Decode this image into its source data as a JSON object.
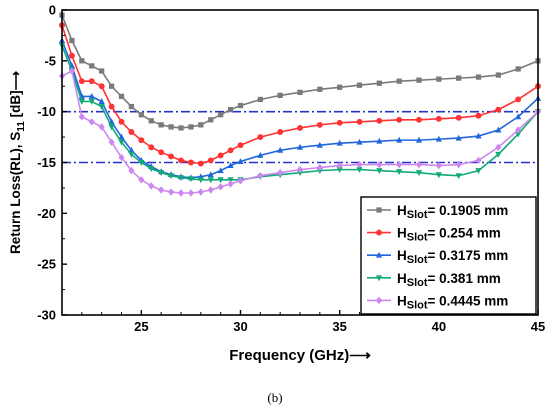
{
  "chart_data": {
    "type": "line",
    "xlabel": "Frequency (GHz)⟶",
    "ylabel_main": "Return Loss(RL), S",
    "ylabel_sub": "11",
    "ylabel_tail": " [dB]⟶",
    "xlim": [
      21,
      45
    ],
    "ylim": [
      -30,
      0
    ],
    "xticks": [
      25,
      30,
      35,
      40,
      45
    ],
    "yticks": [
      0,
      -5,
      -10,
      -15,
      -20,
      -25,
      -30
    ],
    "reference_lines": [
      {
        "y": -10,
        "style": "dash-dot",
        "color": "#2233cc"
      },
      {
        "y": -15,
        "style": "dash-dot",
        "color": "#2233cc"
      }
    ],
    "legend_placement": "bottom-right",
    "series": [
      {
        "name_main": "H",
        "name_sub": "Slot",
        "name_value": "= 0.1905 mm",
        "color": "#7a7a7a",
        "marker": "square",
        "x": [
          21,
          21.5,
          22,
          22.5,
          23,
          23.5,
          24,
          24.5,
          25,
          25.5,
          26,
          26.5,
          27,
          27.5,
          28,
          28.5,
          29,
          29.5,
          30,
          31,
          32,
          33,
          34,
          35,
          36,
          37,
          38,
          39,
          40,
          41,
          42,
          43,
          44,
          45
        ],
        "y": [
          -0.5,
          -3.0,
          -5.0,
          -5.5,
          -6.0,
          -7.5,
          -8.5,
          -9.5,
          -10.3,
          -10.9,
          -11.3,
          -11.5,
          -11.6,
          -11.5,
          -11.3,
          -10.8,
          -10.3,
          -9.8,
          -9.4,
          -8.8,
          -8.4,
          -8.1,
          -7.8,
          -7.6,
          -7.4,
          -7.2,
          -7.0,
          -6.9,
          -6.8,
          -6.7,
          -6.6,
          -6.4,
          -5.8,
          -5.0
        ]
      },
      {
        "name_main": "H",
        "name_sub": "Slot",
        "name_value": "= 0.254 mm",
        "color": "#ff3333",
        "marker": "circle",
        "x": [
          21,
          21.5,
          22,
          22.5,
          23,
          23.5,
          24,
          24.5,
          25,
          25.5,
          26,
          26.5,
          27,
          27.5,
          28,
          28.5,
          29,
          29.5,
          30,
          31,
          32,
          33,
          34,
          35,
          36,
          37,
          38,
          39,
          40,
          41,
          42,
          43,
          44,
          45
        ],
        "y": [
          -1.5,
          -4.5,
          -7.0,
          -7.0,
          -7.5,
          -9.5,
          -11.0,
          -12.0,
          -12.8,
          -13.5,
          -14.0,
          -14.4,
          -14.8,
          -15.0,
          -15.1,
          -14.8,
          -14.3,
          -13.8,
          -13.3,
          -12.5,
          -12.0,
          -11.6,
          -11.3,
          -11.1,
          -11.0,
          -10.9,
          -10.8,
          -10.8,
          -10.7,
          -10.6,
          -10.4,
          -9.8,
          -8.8,
          -7.5
        ]
      },
      {
        "name_main": "H",
        "name_sub": "Slot",
        "name_value": "= 0.3175 mm",
        "color": "#2266dd",
        "marker": "triangle",
        "x": [
          21,
          21.5,
          22,
          22.5,
          23,
          23.5,
          24,
          24.5,
          25,
          25.5,
          26,
          26.5,
          27,
          27.5,
          28,
          28.5,
          29,
          29.5,
          30,
          31,
          32,
          33,
          34,
          35,
          36,
          37,
          38,
          39,
          40,
          41,
          42,
          43,
          44,
          45
        ],
        "y": [
          -3.0,
          -5.5,
          -8.5,
          -8.5,
          -9.0,
          -11.0,
          -12.5,
          -13.8,
          -14.8,
          -15.4,
          -15.9,
          -16.2,
          -16.4,
          -16.5,
          -16.4,
          -16.2,
          -15.8,
          -15.3,
          -14.9,
          -14.3,
          -13.8,
          -13.5,
          -13.3,
          -13.1,
          -13.0,
          -12.9,
          -12.8,
          -12.8,
          -12.7,
          -12.6,
          -12.4,
          -11.8,
          -10.5,
          -8.7
        ]
      },
      {
        "name_main": "H",
        "name_sub": "Slot",
        "name_value": "= 0.381 mm",
        "color": "#11aa77",
        "marker": "down-triangle",
        "x": [
          21,
          21.5,
          22,
          22.5,
          23,
          23.5,
          24,
          24.5,
          25,
          25.5,
          26,
          26.5,
          27,
          27.5,
          28,
          28.5,
          29,
          29.5,
          30,
          31,
          32,
          33,
          34,
          35,
          36,
          37,
          38,
          39,
          40,
          41,
          42,
          43,
          44,
          45
        ],
        "y": [
          -3.5,
          -6.0,
          -9.0,
          -9.0,
          -9.5,
          -11.5,
          -13.0,
          -14.2,
          -15.0,
          -15.6,
          -16.0,
          -16.3,
          -16.5,
          -16.6,
          -16.7,
          -16.7,
          -16.7,
          -16.7,
          -16.7,
          -16.4,
          -16.2,
          -16.0,
          -15.8,
          -15.7,
          -15.7,
          -15.8,
          -15.9,
          -16.0,
          -16.2,
          -16.3,
          -15.8,
          -14.2,
          -12.2,
          -10.0
        ]
      },
      {
        "name_main": "H",
        "name_sub": "Slot",
        "name_value": "= 0.4445 mm",
        "color": "#cc88ee",
        "marker": "diamond",
        "x": [
          21,
          21.5,
          22,
          22.5,
          23,
          23.5,
          24,
          24.5,
          25,
          25.5,
          26,
          26.5,
          27,
          27.5,
          28,
          28.5,
          29,
          29.5,
          30,
          31,
          32,
          33,
          34,
          35,
          36,
          37,
          38,
          39,
          40,
          41,
          42,
          43,
          44,
          45
        ],
        "y": [
          -6.5,
          -6.0,
          -10.5,
          -11.0,
          -11.5,
          -13.0,
          -14.5,
          -15.8,
          -16.7,
          -17.3,
          -17.7,
          -17.9,
          -18.0,
          -18.0,
          -17.9,
          -17.7,
          -17.4,
          -17.1,
          -16.8,
          -16.3,
          -16.0,
          -15.7,
          -15.5,
          -15.3,
          -15.2,
          -15.2,
          -15.2,
          -15.2,
          -15.3,
          -15.2,
          -14.8,
          -13.5,
          -11.8,
          -10.0
        ]
      }
    ]
  },
  "caption": "(b)"
}
